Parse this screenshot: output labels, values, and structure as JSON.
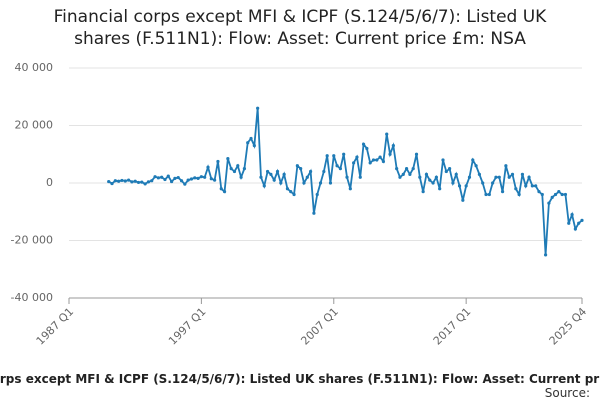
{
  "chart_data": {
    "type": "line",
    "title": "Financial corps except MFI & ICPF (S.124/5/6/7): Listed UK shares (F.511N1): Flow: Asset: Current price £m: NSA",
    "source": "Source:",
    "xlim": [
      1987,
      2025.75
    ],
    "xticks": [
      {
        "value": 1987,
        "label": "1987 Q1"
      },
      {
        "value": 1997,
        "label": "1997 Q1"
      },
      {
        "value": 2007,
        "label": "2007 Q1"
      },
      {
        "value": 2017,
        "label": "2017 Q1"
      },
      {
        "value": 2025.75,
        "label": "2025 Q4"
      }
    ],
    "ylim": [
      -40000,
      40000
    ],
    "yticks": [
      {
        "value": -40000,
        "label": "-40 000"
      },
      {
        "value": -20000,
        "label": "-20 000"
      },
      0,
      {
        "value": 20000,
        "label": "20 000"
      },
      {
        "value": 40000,
        "label": "40 000"
      }
    ],
    "grid": true,
    "x": [
      1990,
      1990.25,
      1990.5,
      1990.75,
      1991,
      1991.25,
      1991.5,
      1991.75,
      1992,
      1992.25,
      1992.5,
      1992.75,
      1993,
      1993.25,
      1993.5,
      1993.75,
      1994,
      1994.25,
      1994.5,
      1994.75,
      1995,
      1995.25,
      1995.5,
      1995.75,
      1996,
      1996.25,
      1996.5,
      1996.75,
      1997,
      1997.25,
      1997.5,
      1997.75,
      1998,
      1998.25,
      1998.5,
      1998.75,
      1999,
      1999.25,
      1999.5,
      1999.75,
      2000,
      2000.25,
      2000.5,
      2000.75,
      2001,
      2001.25,
      2001.5,
      2001.75,
      2002,
      2002.25,
      2002.5,
      2002.75,
      2003,
      2003.25,
      2003.5,
      2003.75,
      2004,
      2004.25,
      2004.5,
      2004.75,
      2005,
      2005.25,
      2005.5,
      2005.75,
      2006,
      2006.25,
      2006.5,
      2006.75,
      2007,
      2007.25,
      2007.5,
      2007.75,
      2008,
      2008.25,
      2008.5,
      2008.75,
      2009,
      2009.25,
      2009.5,
      2009.75,
      2010,
      2010.25,
      2010.5,
      2010.75,
      2011,
      2011.25,
      2011.5,
      2011.75,
      2012,
      2012.25,
      2012.5,
      2012.75,
      2013,
      2013.25,
      2013.5,
      2013.75,
      2014,
      2014.25,
      2014.5,
      2014.75,
      2015,
      2015.25,
      2015.5,
      2015.75,
      2016,
      2016.25,
      2016.5,
      2016.75,
      2017,
      2017.25,
      2017.5,
      2017.75,
      2018,
      2018.25,
      2018.5,
      2018.75,
      2019,
      2019.25,
      2019.5,
      2019.75,
      2020,
      2020.25,
      2020.5,
      2020.75,
      2021,
      2021.25,
      2021.5,
      2021.75,
      2022,
      2022.25,
      2022.5,
      2022.75,
      2023,
      2023.25,
      2023.5,
      2023.75,
      2024,
      2024.25,
      2024.5,
      2024.75,
      2025,
      2025.25,
      2025.5,
      2025.75
    ],
    "series": [
      {
        "name": "Financial corps except MFI & ICPF (S.124/5/6/7): Listed UK shares (F.511N1): Flow: Asset: Current price £m: NSA",
        "color": "#1f7bb6",
        "values": [
          500,
          -200,
          800,
          600,
          900,
          700,
          1000,
          400,
          600,
          200,
          300,
          -300,
          400,
          800,
          2200,
          1800,
          2000,
          1200,
          2400,
          500,
          1600,
          1900,
          800,
          -400,
          1000,
          1400,
          1800,
          1600,
          2200,
          2000,
          5500,
          1500,
          1000,
          7500,
          -2000,
          -3000,
          8500,
          5000,
          4000,
          6000,
          2000,
          5000,
          14000,
          15500,
          13000,
          26000,
          2000,
          -1000,
          4000,
          3000,
          1000,
          4000,
          0,
          3000,
          -2000,
          -3000,
          -4000,
          6000,
          5000,
          0,
          2000,
          4000,
          -10500,
          -4000,
          0,
          4000,
          9500,
          0,
          9500,
          6000,
          5000,
          10000,
          2000,
          -2000,
          7000,
          9000,
          2000,
          13500,
          12000,
          7000,
          8000,
          8000,
          9000,
          7500,
          17000,
          10000,
          13000,
          5000,
          2000,
          3000,
          5000,
          3000,
          5000,
          10000,
          2000,
          -3000,
          3000,
          1000,
          0,
          2000,
          -2000,
          8000,
          4000,
          5000,
          0,
          3000,
          -1000,
          -6000,
          -1000,
          2000,
          8000,
          6000,
          3000,
          0,
          -4000,
          -4000,
          0,
          2000,
          2000,
          -3000,
          6000,
          2000,
          3000,
          -2000,
          -4000,
          3000,
          -1000,
          2000,
          -1000,
          -1000,
          -3000,
          -4000,
          -25000,
          -7000,
          -5000,
          -4000,
          -3000,
          -4000,
          -4000,
          -14000,
          -11000,
          -16000,
          -14000,
          -13000
        ]
      }
    ]
  }
}
